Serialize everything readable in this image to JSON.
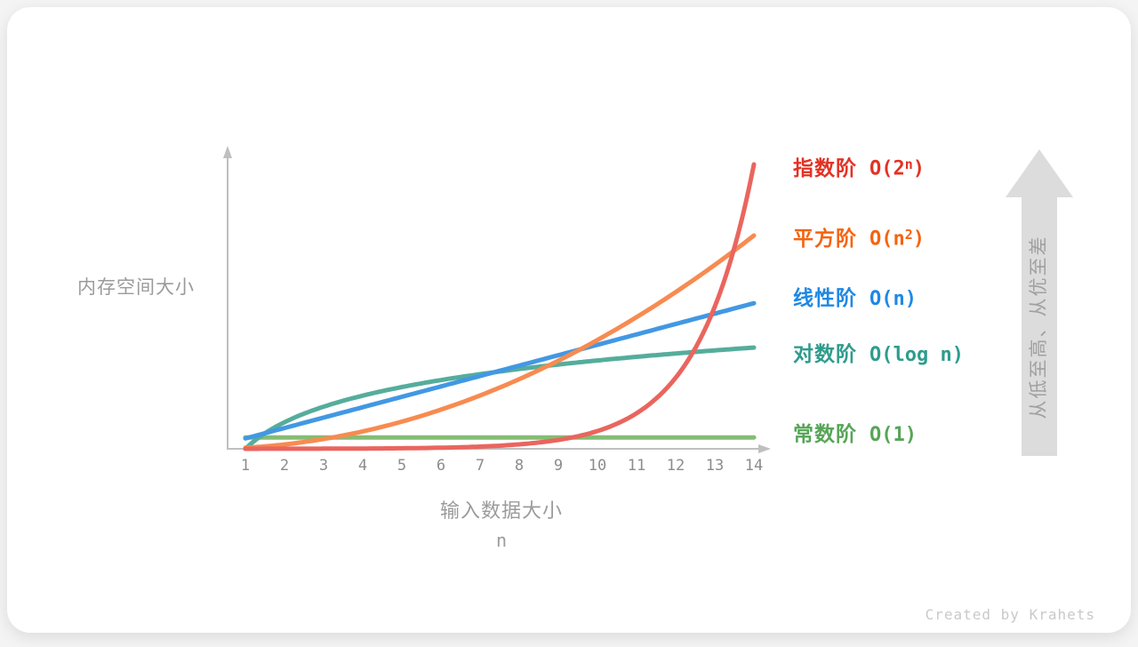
{
  "page": {
    "watermark": "Created by Krahets"
  },
  "chart_data": {
    "type": "line",
    "title": "",
    "xlabel": "输入数据大小",
    "xlabel_unit": "n",
    "ylabel": "内存空间大小",
    "x_range": [
      1,
      14
    ],
    "x_ticks": [
      "1",
      "2",
      "3",
      "4",
      "5",
      "6",
      "7",
      "8",
      "9",
      "10",
      "11",
      "12",
      "13",
      "14"
    ],
    "grid": false,
    "y_axis_note": "no numeric y ticks; values normalized so O(2^n) at n=14 equals 1.0",
    "legend_position": "right",
    "axis_color": "#bfbfbf",
    "tick_color": "#8c8c8c",
    "axis_label_color": "#9b9b9b",
    "series": [
      {
        "id": "exponential",
        "name": "指数阶",
        "formula": {
          "prefix": "O(2",
          "sup": "n",
          "suffix": ")"
        },
        "fn": "exp2",
        "peak": 1.0,
        "label_color": "#e33224",
        "curve_color": "#ea655e",
        "values": [
          0.0001,
          0.0002,
          0.0005,
          0.001,
          0.002,
          0.004,
          0.008,
          0.016,
          0.031,
          0.063,
          0.125,
          0.25,
          0.5,
          1.0
        ],
        "label_center_y": 178
      },
      {
        "id": "quadratic",
        "name": "平方阶",
        "formula": {
          "prefix": "O(n",
          "sup": "2",
          "suffix": ")"
        },
        "fn": "square",
        "peak": 0.75,
        "label_color": "#f4640f",
        "curve_color": "#f78b51",
        "values": [
          0.004,
          0.015,
          0.034,
          0.061,
          0.096,
          0.138,
          0.188,
          0.245,
          0.31,
          0.383,
          0.463,
          0.551,
          0.647,
          0.75
        ],
        "label_center_y": 257
      },
      {
        "id": "linear",
        "name": "线性阶",
        "formula": {
          "prefix": "O(n)",
          "sup": "",
          "suffix": ""
        },
        "fn": "linear",
        "peak": 0.512,
        "label_color": "#1e88e5",
        "curve_color": "#4298e3",
        "values": [
          0.037,
          0.073,
          0.11,
          0.146,
          0.183,
          0.219,
          0.256,
          0.293,
          0.329,
          0.366,
          0.402,
          0.439,
          0.475,
          0.512
        ],
        "label_center_y": 324
      },
      {
        "id": "logarithmic",
        "name": "对数阶",
        "formula": {
          "prefix": "O(log n)",
          "sup": "",
          "suffix": ""
        },
        "fn": "log",
        "peak": 0.356,
        "label_color": "#2e9c8d",
        "curve_color": "#55ad9c",
        "values": [
          0,
          0.094,
          0.148,
          0.187,
          0.217,
          0.242,
          0.262,
          0.281,
          0.296,
          0.311,
          0.323,
          0.335,
          0.346,
          0.356
        ],
        "label_center_y": 387
      },
      {
        "id": "constant",
        "name": "常数阶",
        "formula": {
          "prefix": "O(1)",
          "sup": "",
          "suffix": ""
        },
        "fn": "const",
        "peak": 0.04,
        "label_color": "#57a557",
        "curve_color": "#84bd74",
        "values": [
          0.04,
          0.04,
          0.04,
          0.04,
          0.04,
          0.04,
          0.04,
          0.04,
          0.04,
          0.04,
          0.04,
          0.04,
          0.04,
          0.04
        ],
        "label_center_y": 477
      }
    ],
    "direction_arrow": {
      "text": "从低至高、从优至差",
      "fill": "#dcdcdc",
      "text_color": "#a0a0a0"
    }
  }
}
